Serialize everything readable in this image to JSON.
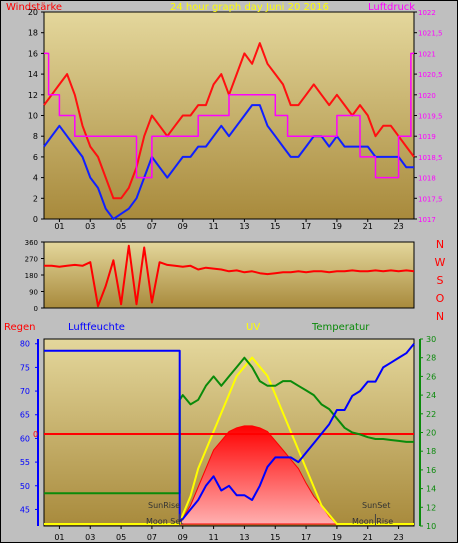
{
  "colors": {
    "background": "#bfbfbf",
    "plot_top": "#e4d79c",
    "plot_bottom": "#a88a3c",
    "wind_gust": "#ff1010",
    "wind_avg": "#1020ff",
    "pressure": "#ff00ff",
    "direction": "#ff0000",
    "humidity": "#0000ff",
    "temperature": "#0a8a0a",
    "uv": "#ffff00",
    "radiation": "#ff0000",
    "rain": "#ff0000"
  },
  "chart_data": [
    {
      "id": "wind",
      "type": "line",
      "title": "24 hour graph day   Juni 20 2016",
      "left_label": "Windstärke",
      "right_label": "Luftdruck",
      "x_ticks": [
        "01",
        "03",
        "05",
        "07",
        "09",
        "11",
        "13",
        "15",
        "17",
        "19",
        "21",
        "23"
      ],
      "y_ticks": [
        "0",
        "2",
        "4",
        "6",
        "8",
        "10",
        "12",
        "14",
        "16",
        "18",
        "20"
      ],
      "y_right_ticks": [
        "1017",
        "1017,5",
        "1018",
        "1018,5",
        "1019",
        "1019,5",
        "1020",
        "1020,5",
        "1021",
        "1021,5",
        "1022"
      ],
      "ylim": [
        0,
        20
      ],
      "y_right_lim": [
        1017,
        1022
      ],
      "xlim": [
        0,
        24
      ],
      "series": [
        {
          "key": "gust",
          "x": [
            0,
            0.5,
            1,
            1.5,
            2,
            2.5,
            3,
            3.5,
            4,
            4.5,
            5,
            5.5,
            6,
            6.5,
            7,
            7.5,
            8,
            8.5,
            9,
            9.5,
            10,
            10.5,
            11,
            11.5,
            12,
            12.5,
            13,
            13.5,
            14,
            14.5,
            15,
            15.5,
            16,
            16.5,
            17,
            17.5,
            18,
            18.5,
            19,
            19.5,
            20,
            20.5,
            21,
            21.5,
            22,
            22.5,
            23,
            23.5,
            24
          ],
          "values": [
            11,
            12,
            13,
            14,
            12,
            9,
            7,
            6,
            4,
            2,
            2,
            3,
            5,
            8,
            10,
            9,
            8,
            9,
            10,
            10,
            11,
            11,
            13,
            14,
            12,
            14,
            16,
            15,
            17,
            15,
            14,
            13,
            11,
            11,
            12,
            13,
            12,
            11,
            12,
            11,
            10,
            11,
            10,
            8,
            9,
            9,
            8,
            7,
            6
          ]
        },
        {
          "key": "average",
          "x": [
            0,
            0.5,
            1,
            1.5,
            2,
            2.5,
            3,
            3.5,
            4,
            4.5,
            5,
            5.5,
            6,
            6.5,
            7,
            7.5,
            8,
            8.5,
            9,
            9.5,
            10,
            10.5,
            11,
            11.5,
            12,
            12.5,
            13,
            13.5,
            14,
            14.5,
            15,
            15.5,
            16,
            16.5,
            17,
            17.5,
            18,
            18.5,
            19,
            19.5,
            20,
            20.5,
            21,
            21.5,
            22,
            22.5,
            23,
            23.5,
            24
          ],
          "values": [
            7,
            8,
            9,
            8,
            7,
            6,
            4,
            3,
            1,
            0,
            0.5,
            1,
            2,
            4,
            6,
            5,
            4,
            5,
            6,
            6,
            7,
            7,
            8,
            9,
            8,
            9,
            10,
            11,
            11,
            9,
            8,
            7,
            6,
            6,
            7,
            8,
            8,
            7,
            8,
            7,
            7,
            7,
            7,
            6,
            6,
            6,
            6,
            5,
            5
          ]
        },
        {
          "key": "pressure",
          "x": [
            0,
            0.3,
            0.3,
            1,
            1,
            2,
            2,
            3,
            3,
            6,
            6,
            7,
            7,
            10,
            10,
            12,
            12,
            15,
            15,
            15.8,
            15.8,
            19,
            19,
            20.5,
            20.5,
            21.5,
            21.5,
            23,
            23,
            23.8,
            23.8,
            24
          ],
          "values": [
            1021,
            1021,
            1020,
            1020,
            1019.5,
            1019.5,
            1019,
            1019,
            1019,
            1019,
            1018,
            1018,
            1019,
            1019,
            1019.5,
            1019.5,
            1020,
            1020,
            1019.5,
            1019.5,
            1019,
            1019,
            1019.5,
            1019.5,
            1018.5,
            1018.5,
            1018,
            1018,
            1019,
            1019,
            1021,
            1021
          ]
        }
      ]
    },
    {
      "id": "direction",
      "type": "line",
      "right_labels": [
        "N",
        "W",
        "S",
        "O",
        "N"
      ],
      "y_ticks": [
        "0",
        "90",
        "180",
        "270",
        "360"
      ],
      "ylim": [
        0,
        360
      ],
      "xlim": [
        0,
        24
      ],
      "series": [
        {
          "key": "direction",
          "x": [
            0,
            0.5,
            1,
            1.5,
            2,
            2.5,
            3,
            3.5,
            4,
            4.5,
            5,
            5.5,
            6,
            6.5,
            7,
            7.5,
            8,
            8.5,
            9,
            9.5,
            10,
            10.5,
            11,
            11.5,
            12,
            12.5,
            13,
            13.5,
            14,
            14.5,
            15,
            15.5,
            16,
            16.5,
            17,
            17.5,
            18,
            18.5,
            19,
            19.5,
            20,
            20.5,
            21,
            21.5,
            22,
            22.5,
            23,
            23.5,
            24
          ],
          "values": [
            230,
            230,
            225,
            230,
            235,
            230,
            250,
            10,
            120,
            260,
            20,
            340,
            20,
            330,
            30,
            250,
            235,
            230,
            225,
            230,
            210,
            220,
            215,
            210,
            200,
            205,
            195,
            200,
            190,
            185,
            190,
            195,
            195,
            200,
            195,
            200,
            200,
            195,
            200,
            200,
            205,
            200,
            200,
            205,
            200,
            205,
            200,
            205,
            200
          ]
        }
      ]
    },
    {
      "id": "lower",
      "type": "line",
      "labels": {
        "rain": "Regen",
        "humidity": "Luftfeuchte",
        "uv": "UV",
        "temperature": "Temperatur"
      },
      "annotations": {
        "sunrise": "SunRise",
        "sunset": "SunSet",
        "moonset": "Moon Set",
        "moonrise": "Moon Rise"
      },
      "rain_marker": "0",
      "x_ticks": [
        "01",
        "03",
        "05",
        "07",
        "09",
        "11",
        "13",
        "15",
        "17",
        "19",
        "21",
        "23"
      ],
      "y_left_ticks": [
        "45",
        "50",
        "55",
        "60",
        "65",
        "70",
        "75",
        "80"
      ],
      "y_right_ticks": [
        "10",
        "12",
        "14",
        "16",
        "18",
        "20",
        "22",
        "24",
        "26",
        "28",
        "30"
      ],
      "humidity_lim": [
        41.5,
        81
      ],
      "temperature_lim": [
        10,
        30
      ],
      "xlim": [
        0,
        24
      ],
      "series": [
        {
          "key": "humidity",
          "x": [
            0,
            8.8,
            8.8,
            9,
            9.5,
            10,
            10.5,
            11,
            11.5,
            12,
            12.5,
            13,
            13.5,
            14,
            14.5,
            15,
            15.5,
            16,
            16.5,
            17,
            17.5,
            18,
            18.5,
            19,
            19.5,
            20,
            20.5,
            21,
            21.5,
            22,
            22.5,
            23,
            23.5,
            24
          ],
          "values": [
            78.5,
            78.5,
            42.5,
            43,
            45,
            47,
            50,
            52,
            49,
            50,
            48,
            48,
            47,
            50,
            54,
            56,
            56,
            56,
            55,
            57,
            59,
            61,
            63,
            66,
            66,
            69,
            70,
            72,
            72,
            75,
            76,
            77,
            78,
            80
          ]
        },
        {
          "key": "temperature",
          "x": [
            0,
            8.8,
            8.8,
            9,
            9.5,
            10,
            10.5,
            11,
            11.5,
            12,
            12.5,
            13,
            13.5,
            14,
            14.5,
            15,
            15.5,
            16,
            16.5,
            17,
            17.5,
            18,
            18.5,
            19,
            19.5,
            20,
            20.5,
            21,
            21.5,
            22,
            22.5,
            23,
            23.5,
            24
          ],
          "values": [
            13.5,
            13.5,
            23.5,
            24,
            23,
            23.5,
            25,
            26,
            25,
            26,
            27,
            28,
            27,
            25.5,
            25,
            25,
            25.5,
            25.5,
            25,
            24.5,
            24,
            23,
            22.5,
            21.5,
            20.5,
            20,
            19.8,
            19.5,
            19.3,
            19.3,
            19.2,
            19.1,
            19,
            19
          ]
        },
        {
          "key": "uv",
          "x": [
            0,
            8.8,
            9,
            9.5,
            10,
            10.5,
            11,
            11.5,
            12,
            12.5,
            13,
            13.5,
            14,
            14.5,
            15,
            15.5,
            16,
            16.5,
            17,
            17.5,
            18,
            18.5,
            19,
            24
          ],
          "values": [
            0,
            0,
            0.5,
            1.5,
            3,
            4,
            5,
            6,
            7,
            8,
            8.5,
            9,
            8.5,
            8,
            7,
            6,
            5,
            4,
            3,
            2,
            1,
            0.5,
            0,
            0
          ]
        },
        {
          "key": "radiation",
          "x": [
            0,
            8.8,
            9,
            9.5,
            10,
            10.5,
            11,
            11.5,
            12,
            12.5,
            13,
            13.5,
            14,
            14.5,
            15,
            15.5,
            16,
            16.5,
            17,
            17.5,
            18,
            18.5,
            19,
            24
          ],
          "values": [
            0,
            0,
            0.3,
            1,
            2,
            3,
            4,
            4.5,
            5,
            5.2,
            5.3,
            5.3,
            5.2,
            5,
            4.5,
            4,
            3.5,
            3,
            2.2,
            1.5,
            1,
            0.4,
            0,
            0
          ]
        },
        {
          "key": "rain",
          "x": [
            0,
            24
          ],
          "values": [
            0,
            0
          ]
        }
      ]
    }
  ]
}
